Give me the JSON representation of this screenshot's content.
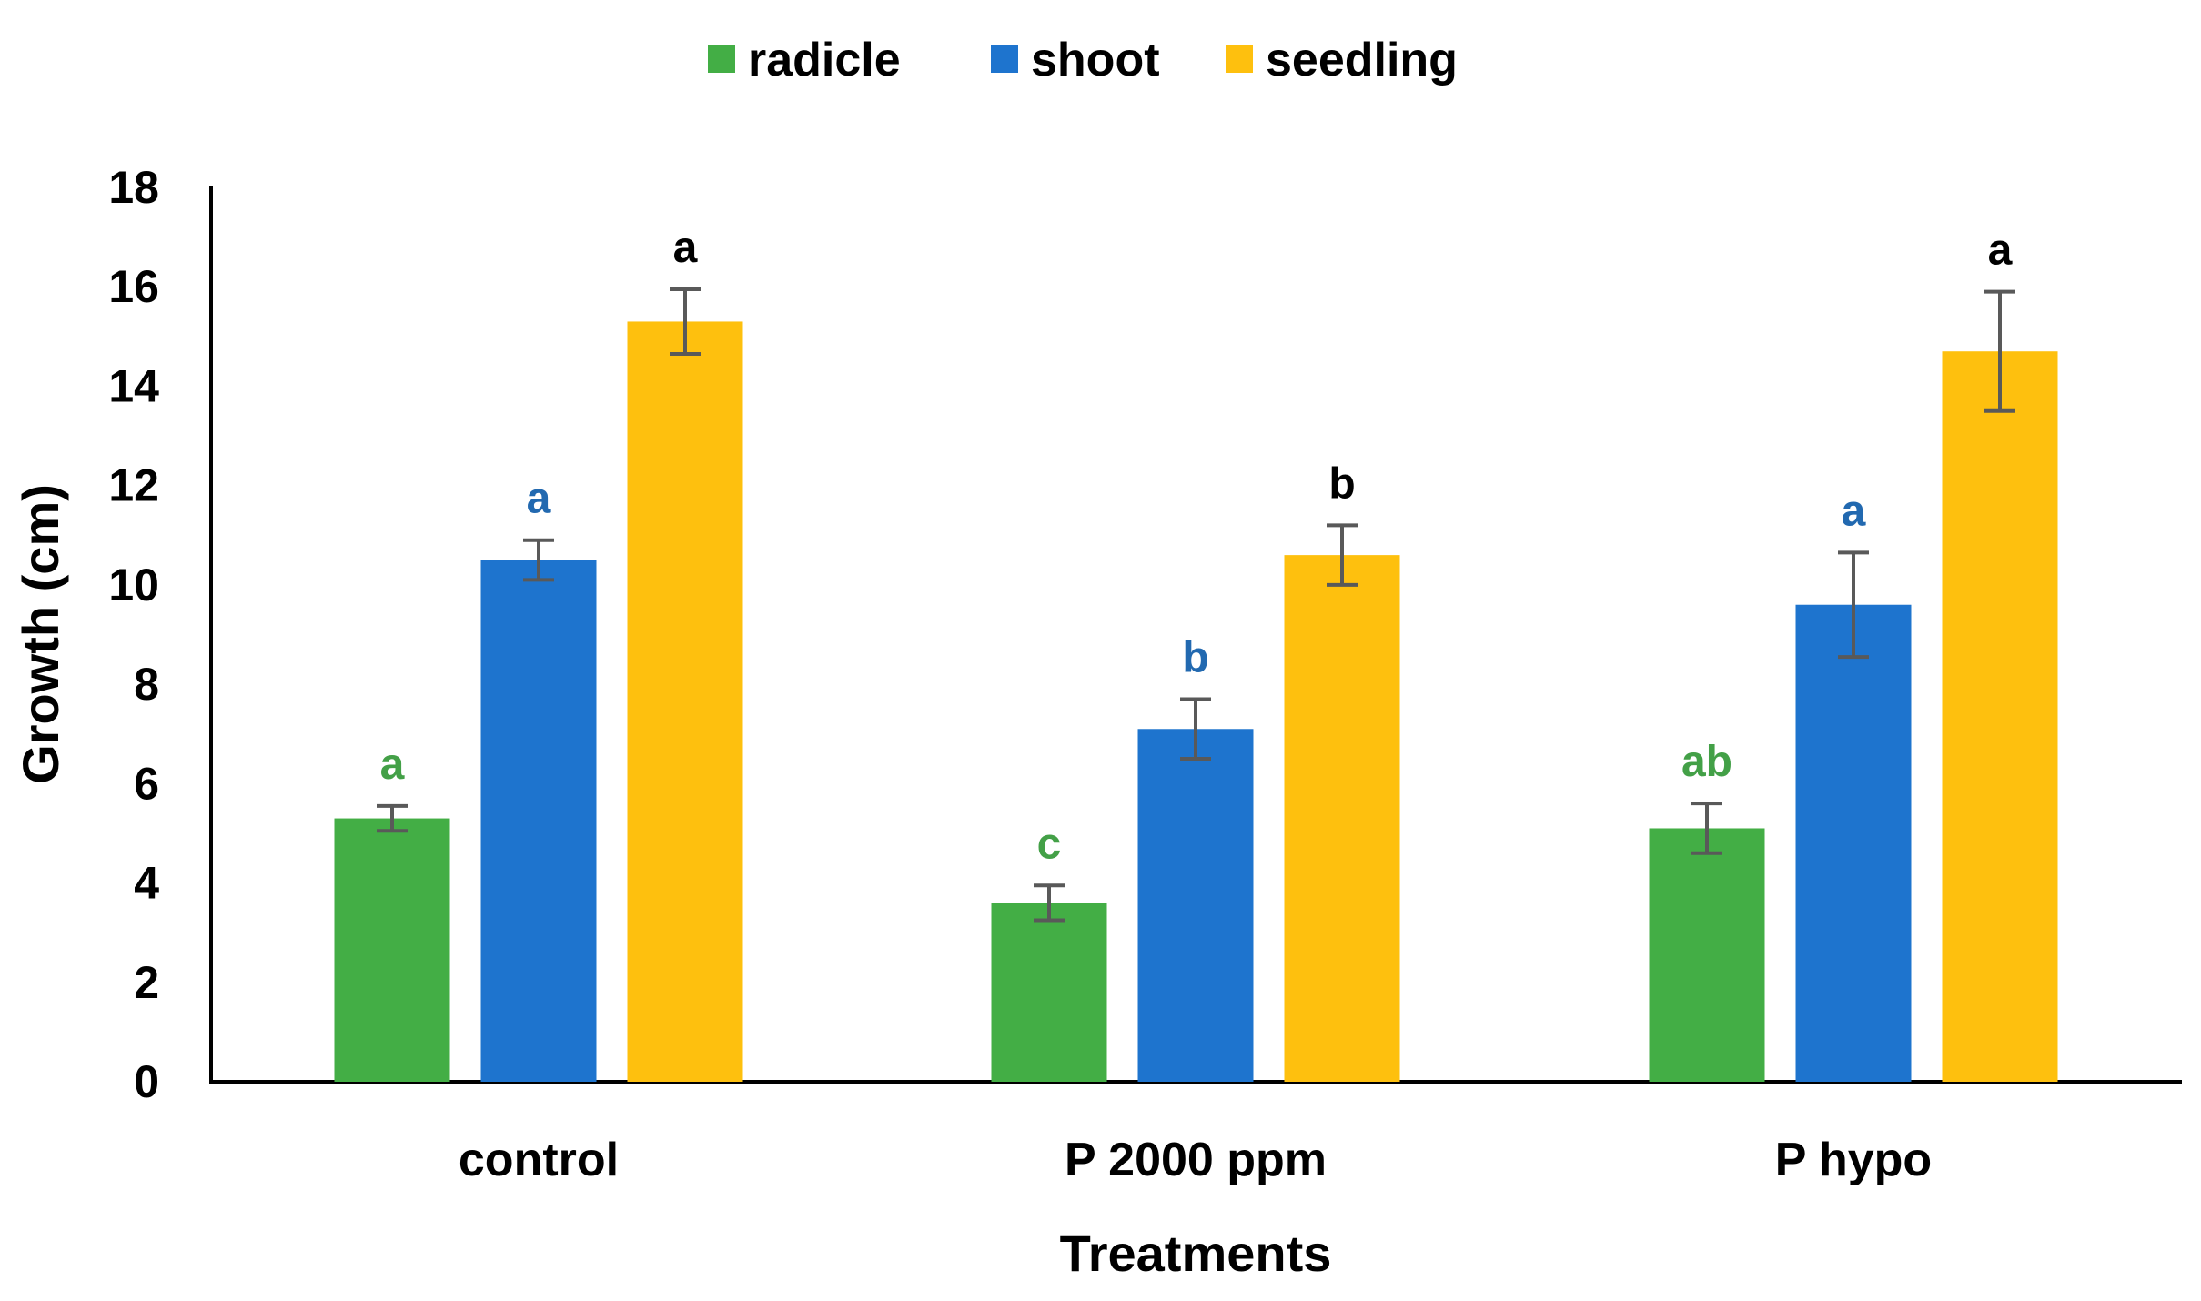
{
  "chart_data": {
    "type": "bar",
    "title": "",
    "xlabel": "Treatments",
    "ylabel": "Growth (cm)",
    "ylim": [
      0,
      18
    ],
    "yticks": [
      0,
      2,
      4,
      6,
      8,
      10,
      12,
      14,
      16,
      18
    ],
    "grid": false,
    "legend_position": "top-center",
    "categories": [
      "control",
      "P 2000 ppm",
      "P hypo"
    ],
    "series": [
      {
        "name": "radicle",
        "color": "#43AE45",
        "label_color": "#43A047",
        "values": [
          5.3,
          3.6,
          5.1
        ],
        "errors": [
          0.25,
          0.35,
          0.5
        ],
        "labels": [
          "a",
          "c",
          "ab"
        ]
      },
      {
        "name": "shoot",
        "color": "#1E74CE",
        "label_color": "#2269B0",
        "values": [
          10.5,
          7.1,
          9.6
        ],
        "errors": [
          0.4,
          0.6,
          1.05
        ],
        "labels": [
          "a",
          "b",
          "a"
        ]
      },
      {
        "name": "seedling",
        "color": "#FEC00E",
        "label_color": "#000000",
        "values": [
          15.3,
          10.6,
          14.7
        ],
        "errors": [
          0.65,
          0.6,
          1.2
        ],
        "labels": [
          "a",
          "b",
          "a"
        ]
      }
    ],
    "error_bar_color": "#595959",
    "axis_color": "#000000"
  }
}
